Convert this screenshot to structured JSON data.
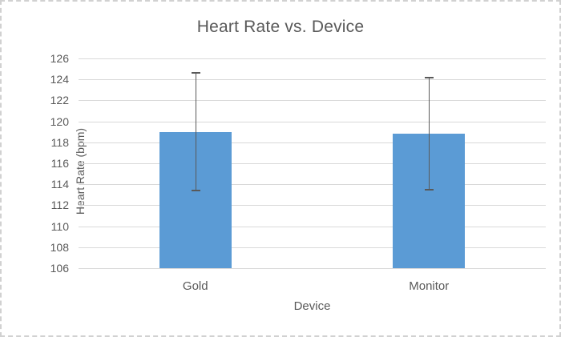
{
  "window": {
    "background_color": "#ffffff",
    "border_color": "#d1d1d1"
  },
  "chart_data": {
    "type": "bar",
    "title": "Heart Rate vs. Device",
    "xlabel": "Device",
    "ylabel": "Heart Rate (bpm)",
    "categories": [
      "Gold",
      "Monitor"
    ],
    "series": [
      {
        "name": "Heart Rate (bpm)",
        "values": [
          119.0,
          118.8
        ],
        "error_upper": [
          124.6,
          124.2
        ],
        "error_lower": [
          113.4,
          113.5
        ]
      }
    ],
    "ylim": [
      106,
      126
    ],
    "ytick_step": 2,
    "ytick_labels": [
      "106",
      "108",
      "110",
      "112",
      "114",
      "116",
      "118",
      "120",
      "122",
      "124",
      "126"
    ],
    "grid": true,
    "legend": false,
    "bar_color": "#5b9bd5",
    "error_bar_color": "#595959",
    "gridline_color": "#d9d9d9",
    "text_color": "#595959"
  }
}
